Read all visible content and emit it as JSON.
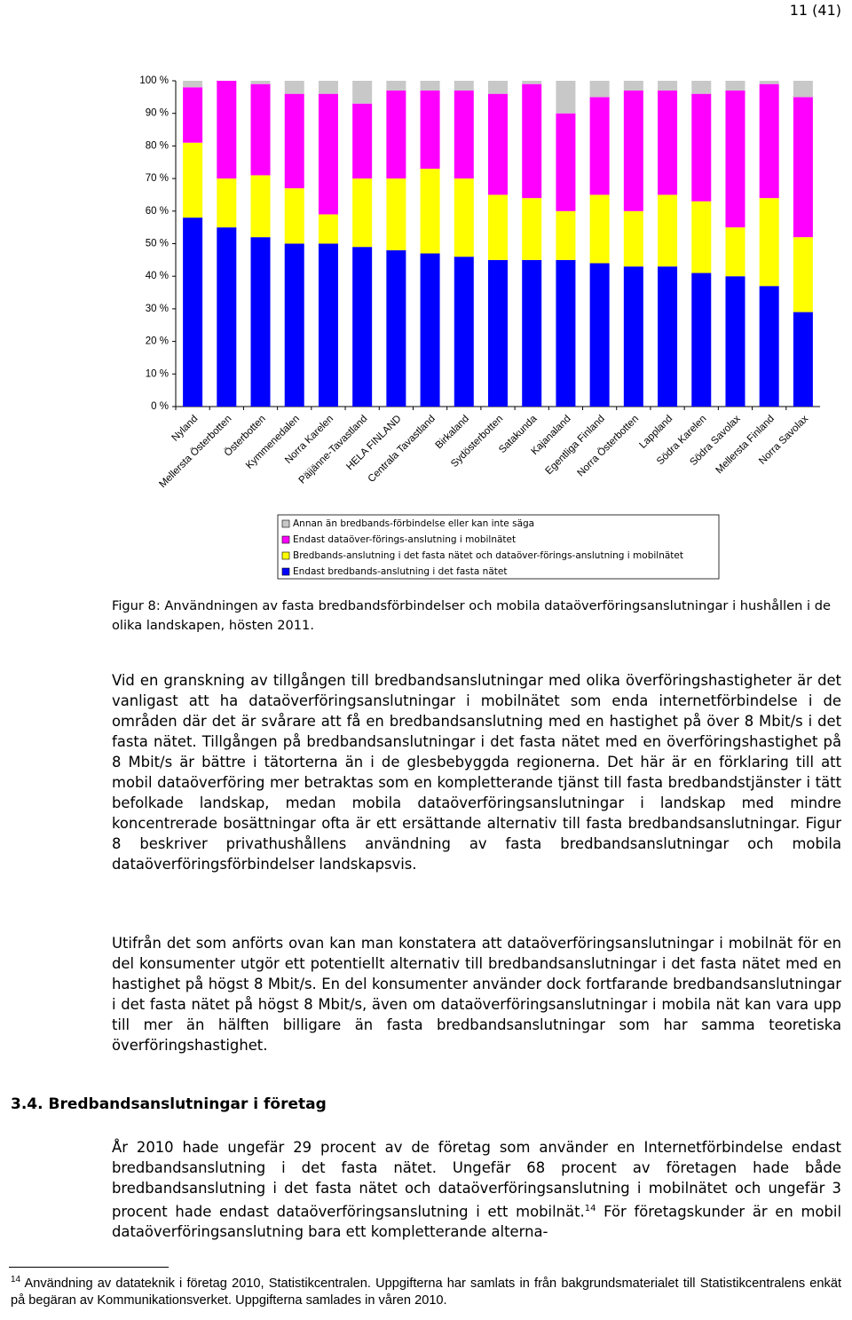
{
  "page_header": "11 (41)",
  "chart_data": {
    "type": "stacked-bar",
    "categories": [
      "Nyland",
      "Mellersta Österbotten",
      "Österbotten",
      "Kymmenedalen",
      "Norra Karelen",
      "Päijänne-Tavastland",
      "HELA FINLAND",
      "Centrala Tavastland",
      "Birkaland",
      "Sydösterbotten",
      "Satakunda",
      "Kajanaland",
      "Egentliga Finland",
      "Norra Österbotten",
      "Lappland",
      "Södra Karelen",
      "Södra Savolax",
      "Mellersta Finland",
      "Norra Savolax"
    ],
    "series": [
      {
        "name": "Endast bredbands-anslutning i det fasta nätet",
        "color": "#0000ff",
        "values": [
          58,
          55,
          52,
          50,
          50,
          49,
          48,
          47,
          46,
          45,
          45,
          45,
          44,
          43,
          43,
          41,
          40,
          37,
          29
        ]
      },
      {
        "name": "Bredbands-anslutning i det fasta nätet och dataöver-förings-anslutning i mobilnätet",
        "color": "#ffff00",
        "values": [
          23,
          15,
          19,
          17,
          9,
          21,
          22,
          26,
          24,
          20,
          19,
          15,
          21,
          17,
          22,
          22,
          15,
          27,
          23
        ]
      },
      {
        "name": "Endast dataöver-förings-anslutning i mobilnätet",
        "color": "#ff00ff",
        "values": [
          17,
          30,
          28,
          29,
          37,
          23,
          27,
          24,
          27,
          31,
          35,
          30,
          30,
          37,
          32,
          33,
          42,
          35,
          43
        ]
      },
      {
        "name": "Annan än bredbands-förbindelse eller kan inte säga",
        "color": "#c8c8c8",
        "values": [
          2,
          0,
          1,
          4,
          4,
          7,
          3,
          3,
          3,
          4,
          1,
          10,
          5,
          3,
          3,
          4,
          3,
          1,
          5
        ]
      }
    ],
    "ylim": [
      0,
      100
    ],
    "yticks": [
      {
        "value": 0,
        "label": "0 %"
      },
      {
        "value": 10,
        "label": "10 %"
      },
      {
        "value": 20,
        "label": "20 %"
      },
      {
        "value": 30,
        "label": "30 %"
      },
      {
        "value": 40,
        "label": "40 %"
      },
      {
        "value": 50,
        "label": "50 %"
      },
      {
        "value": 60,
        "label": "60 %"
      },
      {
        "value": 70,
        "label": "70 %"
      },
      {
        "value": 80,
        "label": "80 %"
      },
      {
        "value": 90,
        "label": "90 %"
      },
      {
        "value": 100,
        "label": "100 %"
      }
    ],
    "grid": false
  },
  "caption": "Figur 8: Användningen av fasta bredbandsförbindelser och mobila dataöverföringsanslutningar i hushållen i de olika landskapen, hösten 2011.",
  "paragraphs": [
    "Vid en granskning av tillgången till bredbandsanslutningar med olika överföringshastigheter är det vanligast att ha dataöverföringsanslutningar i mobilnätet som enda internetförbindelse i de områden där det är svårare att få en bredbandsanslutning med en hastighet på över 8 Mbit/s i det fasta nätet. Tillgången på bredbandsanslutningar i det fasta nätet med en överföringshastighet på 8 Mbit/s är bättre i tätorterna än i de glesbebyggda regionerna. Det här är en förklaring till att mobil dataöverföring mer betraktas som en kompletterande tjänst till fasta bredbandstjänster i tätt befolkade landskap, medan mobila dataöverföringsanslutningar i landskap med mindre koncentrerade bosättningar ofta är ett ersättande alternativ till fasta bredbandsanslutningar. Figur 8 beskriver privathushållens användning av fasta bredbandsanslutningar och mobila dataöverföringsförbindelser landskapsvis.",
    "Utifrån det som anförts ovan kan man konstatera att dataöverföringsanslutningar i mobilnät för en del konsumenter utgör ett potentiellt alternativ till bredbandsanslutningar i det fasta nätet med en hastighet på högst 8 Mbit/s. En del konsumenter använder dock fortfarande bredbandsanslutningar i det fasta nätet på högst 8 Mbit/s, även om dataöverföringsanslutningar i mobila nät kan vara upp till mer än hälften billigare än fasta bredbandsanslutningar som har samma teoretiska överföringshastighet."
  ],
  "section_heading": "3.4. Bredbandsanslutningar i företag",
  "section_paragraph": {
    "text_before": "År 2010 hade ungefär 29 procent av de företag som använder en Internetförbindelse endast bredbandsanslutning i det fasta nätet. Ungefär 68 procent av företagen hade både bredbandsanslutning i det fasta nätet och dataöverföringsanslutning i mobilnätet och ungefär 3 procent hade endast dataöverföringsanslutning i ett mobilnät.",
    "footnote_ref": "14",
    "text_after": " För företagskunder är en mobil dataöverföringsanslutning bara ett kompletterande alterna-"
  },
  "footnote": {
    "number": "14",
    "text": " Användning av datateknik i företag 2010, Statistikcentralen. Uppgifterna har samlats in från bakgrundsmaterialet till Statistikcentralens enkät på begäran av Kommunikationsverket. Uppgifterna samlades in våren 2010."
  }
}
